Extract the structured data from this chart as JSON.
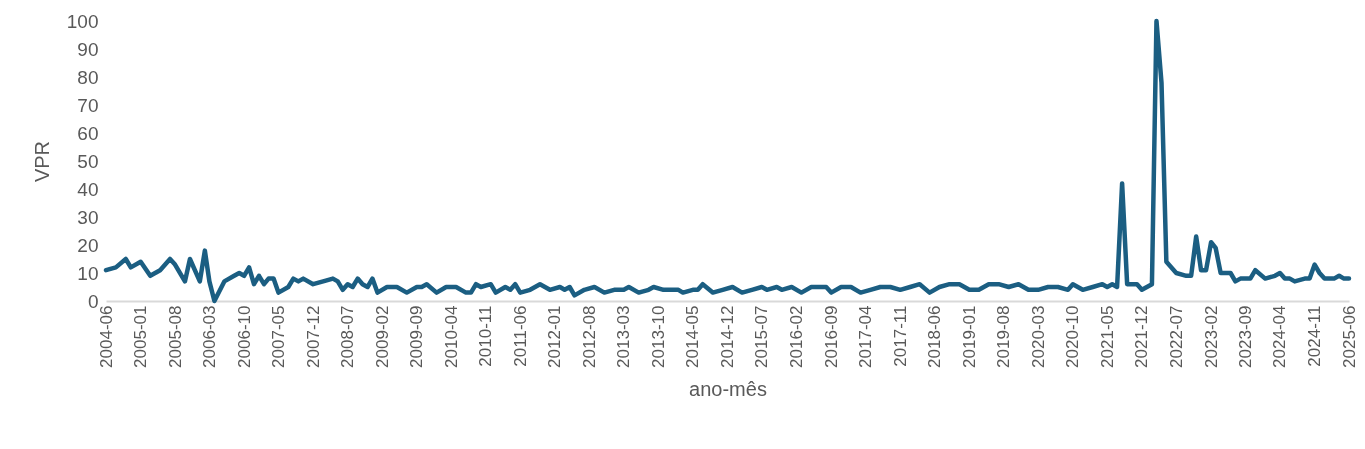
{
  "chart_data": {
    "type": "line",
    "xlabel": "ano-mês",
    "ylabel": "VPR",
    "grid": false,
    "marker": "none",
    "line_style": "solid",
    "ylim": [
      0,
      100
    ],
    "yticks": [
      0,
      10,
      20,
      30,
      40,
      50,
      60,
      70,
      80,
      90,
      100
    ],
    "xlim": [
      "2004-06",
      "2025-06"
    ],
    "xticks": [
      "2004-06",
      "2005-01",
      "2005-08",
      "2006-03",
      "2006-10",
      "2007-05",
      "2007-12",
      "2008-07",
      "2009-02",
      "2009-09",
      "2010-04",
      "2010-11",
      "2011-06",
      "2012-01",
      "2012-08",
      "2013-03",
      "2013-10",
      "2014-05",
      "2014-12",
      "2015-07",
      "2016-02",
      "2016-09",
      "2017-04",
      "2017-11",
      "2018-06",
      "2019-01",
      "2019-08",
      "2020-03",
      "2020-10",
      "2021-05",
      "2021-12",
      "2022-07",
      "2023-02",
      "2023-09",
      "2024-04",
      "2024-11",
      "2025-06"
    ],
    "series": [
      {
        "color": "#1b5e82",
        "x": [
          "2004-06",
          "2004-08",
          "2004-10",
          "2004-11",
          "2005-01",
          "2005-03",
          "2005-05",
          "2005-07",
          "2005-08",
          "2005-10",
          "2005-11",
          "2006-01",
          "2006-02",
          "2006-03",
          "2006-04",
          "2006-06",
          "2006-08",
          "2006-09",
          "2006-10",
          "2006-11",
          "2006-12",
          "2007-01",
          "2007-02",
          "2007-03",
          "2007-04",
          "2007-05",
          "2007-07",
          "2007-08",
          "2007-09",
          "2007-10",
          "2007-12",
          "2008-02",
          "2008-04",
          "2008-05",
          "2008-06",
          "2008-07",
          "2008-08",
          "2008-09",
          "2008-10",
          "2008-11",
          "2008-12",
          "2009-01",
          "2009-03",
          "2009-05",
          "2009-07",
          "2009-09",
          "2009-10",
          "2009-11",
          "2010-01",
          "2010-03",
          "2010-05",
          "2010-07",
          "2010-08",
          "2010-09",
          "2010-10",
          "2010-12",
          "2011-01",
          "2011-03",
          "2011-04",
          "2011-05",
          "2011-06",
          "2011-08",
          "2011-10",
          "2011-12",
          "2012-02",
          "2012-03",
          "2012-04",
          "2012-05",
          "2012-07",
          "2012-09",
          "2012-11",
          "2013-01",
          "2013-03",
          "2013-04",
          "2013-06",
          "2013-08",
          "2013-09",
          "2013-11",
          "2014-02",
          "2014-03",
          "2014-05",
          "2014-06",
          "2014-07",
          "2014-09",
          "2014-11",
          "2015-01",
          "2015-03",
          "2015-05",
          "2015-07",
          "2015-08",
          "2015-10",
          "2015-11",
          "2016-01",
          "2016-03",
          "2016-05",
          "2016-08",
          "2016-09",
          "2016-11",
          "2017-01",
          "2017-03",
          "2017-05",
          "2017-07",
          "2017-09",
          "2017-11",
          "2018-01",
          "2018-03",
          "2018-05",
          "2018-07",
          "2018-09",
          "2018-11",
          "2019-01",
          "2019-03",
          "2019-05",
          "2019-07",
          "2019-09",
          "2019-11",
          "2020-01",
          "2020-03",
          "2020-05",
          "2020-07",
          "2020-09",
          "2020-10",
          "2020-12",
          "2021-02",
          "2021-04",
          "2021-05",
          "2021-06",
          "2021-07",
          "2021-08",
          "2021-09",
          "2021-11",
          "2021-12",
          "2022-02",
          "2022-03",
          "2022-04",
          "2022-05",
          "2022-07",
          "2022-09",
          "2022-10",
          "2022-11",
          "2022-12",
          "2023-01",
          "2023-02",
          "2023-03",
          "2023-04",
          "2023-06",
          "2023-07",
          "2023-08",
          "2023-10",
          "2023-11",
          "2024-01",
          "2024-03",
          "2024-04",
          "2024-05",
          "2024-06",
          "2024-07",
          "2024-09",
          "2024-10",
          "2024-11",
          "2024-12",
          "2025-01",
          "2025-03",
          "2025-04",
          "2025-05",
          "2025-06"
        ],
        "values": [
          11,
          12,
          15,
          12,
          14,
          9,
          11,
          15,
          13,
          7,
          15,
          7,
          18,
          7,
          0,
          7,
          9,
          10,
          9,
          12,
          6,
          9,
          6,
          8,
          8,
          3,
          5,
          8,
          7,
          8,
          6,
          7,
          8,
          7,
          4,
          6,
          5,
          8,
          6,
          5,
          8,
          3,
          5,
          5,
          3,
          5,
          5,
          6,
          3,
          5,
          5,
          3,
          3,
          6,
          5,
          6,
          3,
          5,
          4,
          6,
          3,
          4,
          6,
          4,
          5,
          4,
          5,
          2,
          4,
          5,
          3,
          4,
          4,
          5,
          3,
          4,
          5,
          4,
          4,
          3,
          4,
          4,
          6,
          3,
          4,
          5,
          3,
          4,
          5,
          4,
          5,
          4,
          5,
          3,
          5,
          5,
          3,
          5,
          5,
          3,
          4,
          5,
          5,
          4,
          5,
          6,
          3,
          5,
          6,
          6,
          4,
          4,
          6,
          6,
          5,
          6,
          4,
          4,
          5,
          5,
          4,
          6,
          4,
          5,
          6,
          5,
          6,
          5,
          42,
          6,
          6,
          4,
          6,
          100,
          78,
          14,
          10,
          9,
          9,
          23,
          11,
          11,
          21,
          19,
          10,
          10,
          7,
          8,
          8,
          11,
          8,
          9,
          10,
          8,
          8,
          7,
          8,
          8,
          13,
          10,
          8,
          8,
          9,
          8,
          8
        ]
      }
    ]
  }
}
